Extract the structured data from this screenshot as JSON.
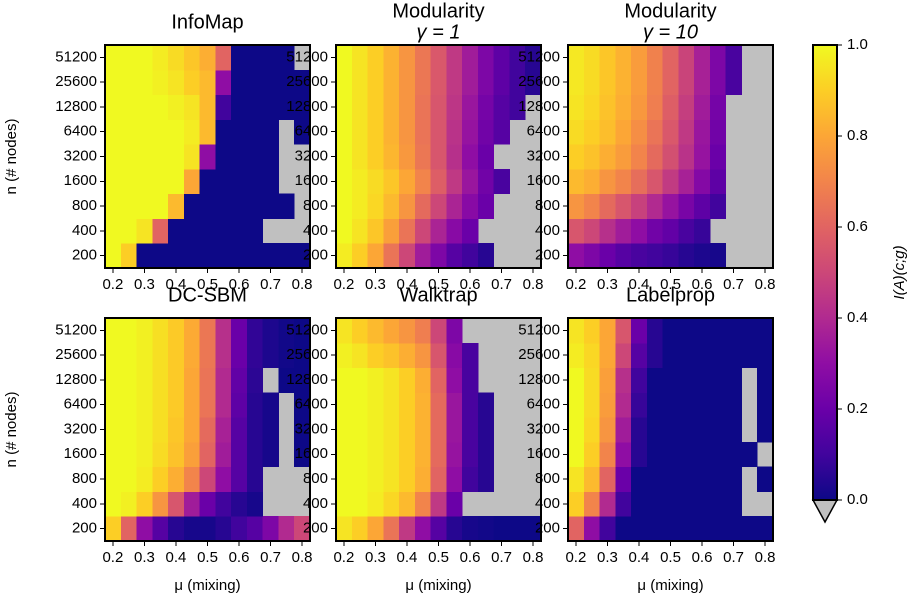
{
  "chart_data": [
    {
      "type": "heatmap",
      "title": "InfoMap",
      "ylabel": "n (# nodes)",
      "x": [
        0.2,
        0.25,
        0.3,
        0.35,
        0.4,
        0.45,
        0.5,
        0.55,
        0.6,
        0.65,
        0.7,
        0.75,
        0.8
      ],
      "y": [
        200,
        400,
        800,
        1600,
        3200,
        6400,
        12800,
        25600,
        51200
      ],
      "z": [
        [
          1,
          0.9,
          0,
          0,
          0,
          0,
          0,
          0,
          0,
          0,
          0,
          0,
          0
        ],
        [
          1,
          1,
          0.95,
          0.6,
          0,
          0,
          0,
          0,
          0,
          0,
          null,
          null,
          null
        ],
        [
          1,
          1,
          1,
          1,
          0.85,
          0,
          0,
          0,
          0,
          0,
          0,
          0,
          null
        ],
        [
          1,
          1,
          1,
          1,
          1,
          0.8,
          0,
          0,
          0,
          0,
          0,
          null,
          null
        ],
        [
          1,
          1,
          1,
          1,
          1,
          0.95,
          0.3,
          0,
          0,
          0,
          0,
          null,
          null
        ],
        [
          1,
          1,
          1,
          1,
          1,
          0.97,
          0.85,
          0,
          0,
          0,
          0,
          null,
          0
        ],
        [
          1,
          1,
          1,
          1,
          0.98,
          0.95,
          0.85,
          0.1,
          0,
          0,
          0,
          0,
          0
        ],
        [
          1,
          1,
          1,
          0.98,
          0.95,
          0.9,
          0.85,
          0.3,
          0,
          0,
          0,
          0,
          0
        ],
        [
          1,
          1,
          1,
          0.97,
          0.93,
          0.88,
          0.82,
          0.6,
          0,
          0,
          0,
          0,
          null
        ]
      ],
      "xlim": [
        0.175,
        0.825
      ],
      "xticks": [
        0.2,
        0.3,
        0.4,
        0.5,
        0.6,
        0.7,
        0.8
      ]
    },
    {
      "type": "heatmap",
      "title": "Modularity",
      "subtitle": "γ = 1",
      "x": [
        0.2,
        0.25,
        0.3,
        0.35,
        0.4,
        0.45,
        0.5,
        0.55,
        0.6,
        0.65,
        0.7,
        0.75,
        0.8
      ],
      "y": [
        200,
        400,
        800,
        1600,
        3200,
        6400,
        12800,
        25600,
        51200
      ],
      "z": [
        [
          0.97,
          0.9,
          0.8,
          0.65,
          0.5,
          0.35,
          0.25,
          0.15,
          0.1,
          0.05,
          null,
          null,
          null
        ],
        [
          1,
          0.95,
          0.88,
          0.78,
          0.65,
          0.5,
          0.38,
          0.28,
          0.2,
          null,
          null,
          null,
          null
        ],
        [
          1,
          0.97,
          0.92,
          0.85,
          0.75,
          0.62,
          0.5,
          0.38,
          0.28,
          0.2,
          null,
          null,
          null
        ],
        [
          1,
          0.97,
          0.93,
          0.88,
          0.8,
          0.7,
          0.58,
          0.45,
          0.33,
          0.22,
          0.12,
          null,
          null
        ],
        [
          1,
          0.95,
          0.9,
          0.84,
          0.76,
          0.66,
          0.55,
          0.42,
          0.3,
          0.2,
          null,
          null,
          null
        ],
        [
          1,
          0.95,
          0.9,
          0.83,
          0.75,
          0.65,
          0.55,
          0.43,
          0.32,
          0.22,
          0.15,
          null,
          null
        ],
        [
          1,
          0.95,
          0.9,
          0.83,
          0.75,
          0.65,
          0.55,
          0.44,
          0.33,
          0.23,
          0.15,
          0.1,
          null
        ],
        [
          1,
          0.95,
          0.9,
          0.83,
          0.75,
          0.66,
          0.56,
          0.45,
          0.35,
          0.25,
          0.17,
          0.1,
          0.05
        ],
        [
          1,
          0.95,
          0.9,
          0.83,
          0.75,
          0.66,
          0.56,
          0.45,
          0.35,
          0.25,
          0.17,
          0.1,
          0.05
        ]
      ],
      "xlim": [
        0.175,
        0.825
      ],
      "xticks": [
        0.2,
        0.3,
        0.4,
        0.5,
        0.6,
        0.7,
        0.8
      ]
    },
    {
      "type": "heatmap",
      "title": "Modularity",
      "subtitle": "γ = 10",
      "x": [
        0.2,
        0.25,
        0.3,
        0.35,
        0.4,
        0.45,
        0.5,
        0.55,
        0.6,
        0.65,
        0.7,
        0.75,
        0.8
      ],
      "y": [
        200,
        400,
        800,
        1600,
        3200,
        6400,
        12800,
        25600,
        51200
      ],
      "z": [
        [
          0.3,
          0.25,
          0.2,
          0.15,
          0.12,
          0.1,
          0.08,
          0.05,
          0.03,
          0.02,
          null,
          null,
          null
        ],
        [
          0.55,
          0.5,
          0.42,
          0.35,
          0.3,
          0.22,
          0.18,
          0.12,
          0.08,
          null,
          null,
          null,
          null
        ],
        [
          0.75,
          0.7,
          0.62,
          0.55,
          0.48,
          0.4,
          0.32,
          0.24,
          0.17,
          0.1,
          null,
          null,
          null
        ],
        [
          0.85,
          0.82,
          0.75,
          0.7,
          0.63,
          0.55,
          0.46,
          0.37,
          0.27,
          0.17,
          null,
          null,
          null
        ],
        [
          0.9,
          0.87,
          0.82,
          0.77,
          0.7,
          0.62,
          0.53,
          0.43,
          0.32,
          0.2,
          null,
          null,
          null
        ],
        [
          0.93,
          0.9,
          0.86,
          0.8,
          0.73,
          0.65,
          0.56,
          0.45,
          0.33,
          0.22,
          null,
          null,
          null
        ],
        [
          0.95,
          0.92,
          0.87,
          0.82,
          0.76,
          0.68,
          0.58,
          0.47,
          0.35,
          0.23,
          null,
          null,
          null
        ],
        [
          0.96,
          0.93,
          0.88,
          0.83,
          0.77,
          0.69,
          0.6,
          0.49,
          0.37,
          0.25,
          0.12,
          null,
          null
        ],
        [
          0.96,
          0.93,
          0.88,
          0.83,
          0.77,
          0.69,
          0.6,
          0.49,
          0.37,
          0.25,
          0.12,
          null,
          null
        ]
      ],
      "xlim": [
        0.175,
        0.825
      ],
      "xticks": [
        0.2,
        0.3,
        0.4,
        0.5,
        0.6,
        0.7,
        0.8
      ]
    },
    {
      "type": "heatmap",
      "title": "DC-SBM",
      "ylabel": "n (# nodes)",
      "xlabel": "μ (mixing)",
      "x": [
        0.2,
        0.25,
        0.3,
        0.35,
        0.4,
        0.45,
        0.5,
        0.55,
        0.6,
        0.65,
        0.7,
        0.75,
        0.8
      ],
      "y": [
        200,
        400,
        800,
        1600,
        3200,
        6400,
        12800,
        25600,
        51200
      ],
      "z": [
        [
          0.9,
          0.6,
          0.3,
          0.15,
          0.05,
          0.02,
          0.02,
          0.05,
          0.1,
          0.15,
          0.25,
          0.4,
          0.5
        ],
        [
          1,
          0.98,
          0.9,
          0.75,
          0.55,
          0.35,
          0.2,
          0.1,
          0.05,
          0.02,
          null,
          null,
          null
        ],
        [
          1,
          1,
          0.97,
          0.9,
          0.82,
          0.7,
          0.5,
          0.3,
          0.15,
          0.05,
          null,
          null,
          null
        ],
        [
          1,
          1,
          0.98,
          0.93,
          0.87,
          0.78,
          0.6,
          0.35,
          0.15,
          0.05,
          0.02,
          null,
          0
        ],
        [
          1,
          1,
          0.98,
          0.94,
          0.88,
          0.8,
          0.62,
          0.37,
          0.15,
          0.05,
          0.02,
          null,
          0
        ],
        [
          1,
          1,
          0.98,
          0.94,
          0.89,
          0.8,
          0.65,
          0.4,
          0.17,
          0.05,
          0.02,
          null,
          0
        ],
        [
          1,
          1,
          0.98,
          0.94,
          0.89,
          0.8,
          0.65,
          0.4,
          0.18,
          0.06,
          null,
          0,
          0
        ],
        [
          1,
          1,
          0.98,
          0.94,
          0.89,
          0.81,
          0.66,
          0.42,
          0.2,
          0.07,
          0.03,
          0.01,
          0
        ],
        [
          1,
          1,
          0.98,
          0.94,
          0.89,
          0.81,
          0.66,
          0.42,
          0.2,
          0.07,
          0.03,
          0.01,
          0
        ]
      ],
      "xlim": [
        0.175,
        0.825
      ],
      "xticks": [
        0.2,
        0.3,
        0.4,
        0.5,
        0.6,
        0.7,
        0.8
      ]
    },
    {
      "type": "heatmap",
      "title": "Walktrap",
      "xlabel": "μ (mixing)",
      "x": [
        0.2,
        0.25,
        0.3,
        0.35,
        0.4,
        0.45,
        0.5,
        0.55,
        0.6,
        0.65,
        0.7,
        0.75,
        0.8
      ],
      "y": [
        200,
        400,
        800,
        1600,
        3200,
        6400,
        12800,
        25600,
        51200
      ],
      "z": [
        [
          0.95,
          0.9,
          0.8,
          0.65,
          0.45,
          0.3,
          0.15,
          0.05,
          0.02,
          0.01,
          0,
          0,
          0
        ],
        [
          1,
          1,
          0.97,
          0.92,
          0.85,
          0.7,
          0.45,
          0.2,
          null,
          null,
          null,
          null,
          null
        ],
        [
          1,
          1,
          0.98,
          0.95,
          0.9,
          0.82,
          0.6,
          0.3,
          0.1,
          0.05,
          null,
          null,
          null
        ],
        [
          1,
          1,
          0.98,
          0.95,
          0.9,
          0.83,
          0.62,
          0.32,
          0.12,
          0.05,
          null,
          null,
          null
        ],
        [
          1,
          1,
          0.98,
          0.95,
          0.9,
          0.83,
          0.62,
          0.33,
          0.12,
          0.05,
          null,
          null,
          null
        ],
        [
          1,
          1,
          0.98,
          0.95,
          0.9,
          0.83,
          0.62,
          0.33,
          0.12,
          0.05,
          null,
          null,
          null
        ],
        [
          1,
          1,
          0.98,
          0.95,
          0.9,
          0.82,
          0.6,
          0.3,
          0.12,
          null,
          null,
          null,
          null
        ],
        [
          0.98,
          0.95,
          0.9,
          0.87,
          0.82,
          0.75,
          0.55,
          0.28,
          0.12,
          null,
          null,
          null,
          null
        ],
        [
          0.95,
          0.9,
          0.85,
          0.8,
          0.75,
          0.68,
          0.5,
          0.25,
          null,
          null,
          null,
          null,
          null
        ]
      ],
      "xlim": [
        0.175,
        0.825
      ],
      "xticks": [
        0.2,
        0.3,
        0.4,
        0.5,
        0.6,
        0.7,
        0.8
      ]
    },
    {
      "type": "heatmap",
      "title": "Labelprop",
      "xlabel": "μ (mixing)",
      "x": [
        0.2,
        0.25,
        0.3,
        0.35,
        0.4,
        0.45,
        0.5,
        0.55,
        0.6,
        0.65,
        0.7,
        0.75,
        0.8
      ],
      "y": [
        200,
        400,
        800,
        1600,
        3200,
        6400,
        12800,
        25600,
        51200
      ],
      "z": [
        [
          0.6,
          0.3,
          0.1,
          0,
          0,
          0,
          0,
          0,
          0,
          0,
          0,
          0,
          0
        ],
        [
          0.9,
          0.7,
          0.4,
          0.1,
          0,
          0,
          0,
          0,
          0,
          0,
          0,
          null,
          null
        ],
        [
          0.95,
          0.85,
          0.6,
          0.2,
          0,
          0,
          0,
          0,
          0,
          0,
          0,
          null,
          0
        ],
        [
          1,
          0.9,
          0.7,
          0.3,
          0.05,
          0,
          0,
          0,
          0,
          0,
          0,
          0,
          null
        ],
        [
          1,
          0.92,
          0.75,
          0.35,
          0.05,
          0,
          0,
          0,
          0,
          0,
          0,
          null,
          0
        ],
        [
          1,
          0.93,
          0.77,
          0.4,
          0.08,
          0,
          0,
          0,
          0,
          0,
          0,
          null,
          0
        ],
        [
          1,
          0.93,
          0.78,
          0.42,
          0.1,
          0,
          0,
          0,
          0,
          0,
          0,
          null,
          0
        ],
        [
          0.97,
          0.92,
          0.8,
          0.5,
          0.15,
          0.05,
          0,
          0,
          0,
          0,
          0,
          0,
          0
        ],
        [
          0.95,
          0.9,
          0.8,
          0.55,
          0.2,
          0.05,
          0,
          0,
          0,
          0,
          0,
          0,
          0
        ]
      ],
      "xlim": [
        0.175,
        0.825
      ],
      "xticks": [
        0.2,
        0.3,
        0.4,
        0.5,
        0.6,
        0.7,
        0.8
      ]
    }
  ],
  "colorbar": {
    "label": "I(A)(c;g)",
    "colormap": "plasma",
    "nan_color": "#c0c0c0",
    "extend": "min",
    "lim": [
      0,
      1
    ],
    "ticks": [
      {
        "value": 0,
        "label": "0.0"
      },
      0.2,
      0.4,
      0.6,
      0.8,
      {
        "value": 1,
        "label": "1.0"
      }
    ]
  }
}
